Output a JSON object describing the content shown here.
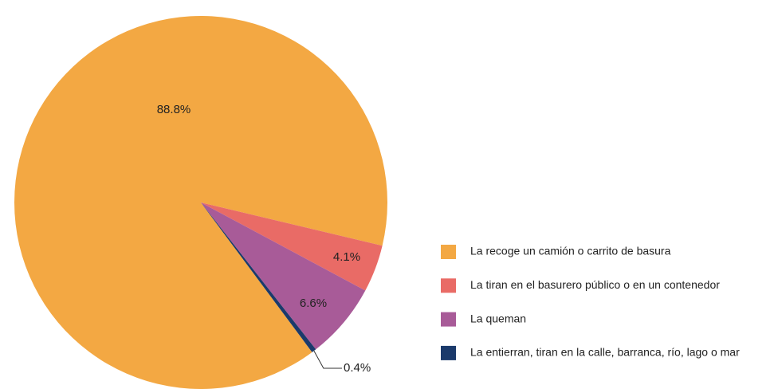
{
  "chart_data": {
    "type": "pie",
    "categories": [
      "La recoge un camión o carrito de basura",
      "La tiran en el basurero público o en un contenedor",
      "La queman",
      "La entierran, tiran en la calle, barranca, río, lago o mar"
    ],
    "values": [
      88.8,
      4.1,
      6.6,
      0.4
    ],
    "value_labels": [
      "88.8%",
      "4.1%",
      "6.6%",
      "0.4%"
    ],
    "colors": [
      "#f3a843",
      "#e96b66",
      "#a85b98",
      "#1b3a6b"
    ],
    "legend": "right"
  }
}
